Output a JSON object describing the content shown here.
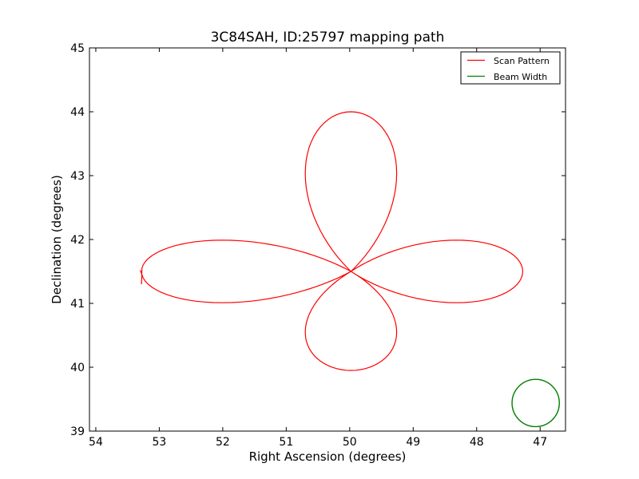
{
  "chart_data": {
    "type": "line",
    "title": "3C84SAH, ID:25797 mapping path",
    "xlabel": "Right Ascension (degrees)",
    "ylabel": "Declination (degrees)",
    "xlim": [
      54.1,
      46.6
    ],
    "ylim": [
      39,
      45
    ],
    "x_axis_inverted": true,
    "x_ticks": [
      "54",
      "53",
      "52",
      "51",
      "50",
      "49",
      "48",
      "47"
    ],
    "y_ticks": [
      "39",
      "40",
      "41",
      "42",
      "43",
      "44",
      "45"
    ],
    "grid": false,
    "legend_position": "top-right",
    "center": [
      49.98,
      41.5
    ],
    "series": [
      {
        "name": "Scan Pattern",
        "color": "#ff0000",
        "kind": "four-petal-rose",
        "petal_length_ra": 3.3,
        "petal_length_dec": 2.5,
        "petal_half_width_ra": 1.0,
        "petal_half_width_dec": 0.7,
        "start": [
          53.3,
          41.52
        ],
        "end": [
          53.28,
          41.3
        ]
      },
      {
        "name": "Beam Width",
        "color": "#008000",
        "kind": "circle",
        "center": [
          47.07,
          39.44
        ],
        "radius_dec": 0.37
      }
    ]
  }
}
